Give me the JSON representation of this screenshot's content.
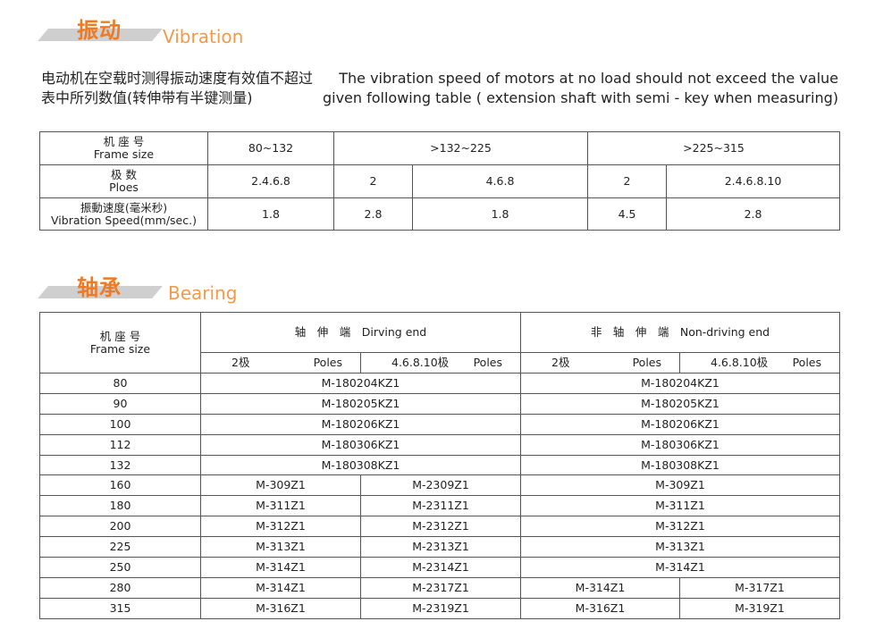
{
  "vibration": {
    "title_cn": "振动",
    "title_en": "Vibration",
    "desc_cn": [
      "电动机在空载时测得振动速度有效值不超过",
      "表中所列数值(转伸带有半键测量)"
    ],
    "desc_en": [
      "The vibration speed of motors at no load should not exceed the value",
      "given following table ( extension shaft with semi - key when measuring)"
    ],
    "table": {
      "frame_cn": "机 座 号",
      "frame_en": "Frame size",
      "frames": [
        "80~132",
        ">132~225",
        ">225~315"
      ],
      "poles_cn": "极 数",
      "poles_en": "Ploes",
      "poles": [
        "2.4.6.8",
        "2",
        "4.6.8",
        "2",
        "2.4.6.8.10"
      ],
      "speed_cn": "振動速度(毫米秒)",
      "speed_en": "Vibration Speed(mm/sec.)",
      "speeds": [
        "1.8",
        "2.8",
        "1.8",
        "4.5",
        "2.8"
      ]
    }
  },
  "bearing": {
    "title_cn": "轴承",
    "title_en": "Bearing",
    "table": {
      "frame_cn": "机 座 号",
      "frame_en": "Frame size",
      "driving": "轴　伸　端　Dirving end",
      "nondriving": "非　轴　伸　端　Non-driving end",
      "sub": [
        [
          "2极",
          "Poles"
        ],
        [
          "4.6.8.10极",
          "Poles"
        ],
        [
          "2极",
          "Poles"
        ],
        [
          "4.6.8.10极",
          "Poles"
        ]
      ],
      "rows_merged": [
        [
          "80",
          "M-180204KZ1",
          "M-180204KZ1"
        ],
        [
          "90",
          "M-180205KZ1",
          "M-180205KZ1"
        ],
        [
          "100",
          "M-180206KZ1",
          "M-180206KZ1"
        ],
        [
          "112",
          "M-180306KZ1",
          "M-180306KZ1"
        ],
        [
          "132",
          "M-180308KZ1",
          "M-180308KZ1"
        ]
      ],
      "rows_mid": [
        [
          "160",
          "M-309Z1",
          "M-2309Z1",
          "M-309Z1"
        ],
        [
          "180",
          "M-311Z1",
          "M-2311Z1",
          "M-311Z1"
        ],
        [
          "200",
          "M-312Z1",
          "M-2312Z1",
          "M-312Z1"
        ],
        [
          "225",
          "M-313Z1",
          "M-2313Z1",
          "M-313Z1"
        ],
        [
          "250",
          "M-314Z1",
          "M-2314Z1",
          "M-314Z1"
        ]
      ],
      "rows_full": [
        [
          "280",
          "M-314Z1",
          "M-2317Z1",
          "M-314Z1",
          "M-317Z1"
        ],
        [
          "315",
          "M-316Z1",
          "M-2319Z1",
          "M-316Z1",
          "M-319Z1"
        ]
      ]
    }
  }
}
